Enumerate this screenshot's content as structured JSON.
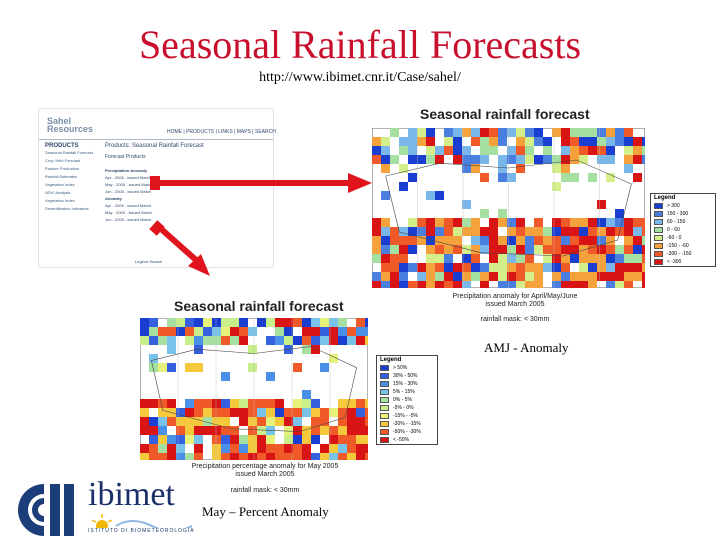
{
  "slide": {
    "title": "Seasonal Rainfall Forecasts",
    "url": "http://www.ibimet.cnr.it/Case/sahel/"
  },
  "website": {
    "logo_line1": "Sahel",
    "logo_line2": "Resources",
    "nav": "HOME | PRODUCTS | LINKS | MAPS | SEARCH",
    "side_title": "PRODUCTS",
    "side_items": [
      "Seasonal Rainfall Forecast",
      "Crop Yield Forecast",
      "Pasture Production",
      "Rainfall Estimates",
      "Vegetation Index",
      "NDVI Analysis",
      "Vegetation Index",
      "Desertification Indicators"
    ],
    "breadcrumb": "Products: Seasonal Rainfall Forecast",
    "subtitle": "Forecast Products",
    "section1": "Precipitation Anomaly",
    "section1_rows": [
      "Apr - 2005 - issued March",
      "May - 2005 - issued March",
      "Jun - 2005 - issued March"
    ],
    "section2": "Anomaly",
    "section2_rows": [
      "Apr - 2005 - issued March",
      "May - 2005 - issued March",
      "Jun - 2005 - issued March"
    ],
    "footer": "Legend   Search"
  },
  "map_amj": {
    "title": "Seasonal rainfall forecast",
    "legend_title": "Legend",
    "legend": [
      {
        "label": "> 300",
        "color": "#1a3fd0"
      },
      {
        "label": "150 - 300",
        "color": "#4a7fe0"
      },
      {
        "label": "60 - 150",
        "color": "#79b7ea"
      },
      {
        "label": "0 - 60",
        "color": "#a6e0a0"
      },
      {
        "label": "-60 - 0",
        "color": "#d4ef8a"
      },
      {
        "label": "-150 - -60",
        "color": "#f6a23c"
      },
      {
        "label": "-300 - -150",
        "color": "#f05a28"
      },
      {
        "label": "< -300",
        "color": "#d91414"
      }
    ],
    "caption1": "Precipitation anomaly for April/May/June",
    "caption2": "issued March 2005",
    "caption3": "rainfall mask: < 30mm"
  },
  "map_may": {
    "title": "Seasonal rainfall forecast",
    "legend_title": "Legend",
    "legend": [
      {
        "label": "> 50%",
        "color": "#1a3fd0"
      },
      {
        "label": "30% - 50%",
        "color": "#3560e0"
      },
      {
        "label": "15% - 30%",
        "color": "#4a90e8"
      },
      {
        "label": "5% - 15%",
        "color": "#79c2ea"
      },
      {
        "label": "0% - 5%",
        "color": "#a6e0a0"
      },
      {
        "label": "-5% - 0%",
        "color": "#c9ef8a"
      },
      {
        "label": "-15% - -5%",
        "color": "#e6f27a"
      },
      {
        "label": "-30% - -15%",
        "color": "#f6c83c"
      },
      {
        "label": "-50% - -30%",
        "color": "#f05a28"
      },
      {
        "label": "< -50%",
        "color": "#d91414"
      }
    ],
    "caption1": "Precipitation percentage anomaly for May 2005",
    "caption2": "issued March 2005",
    "caption3": "rainfall mask: < 30mm"
  },
  "labels": {
    "amj": "AMJ - Anomaly",
    "may": "May – Percent Anomaly"
  },
  "logo": {
    "name": "ibimet",
    "sub": "ISTITUTO DI BIOMETEOROLOGIA"
  }
}
